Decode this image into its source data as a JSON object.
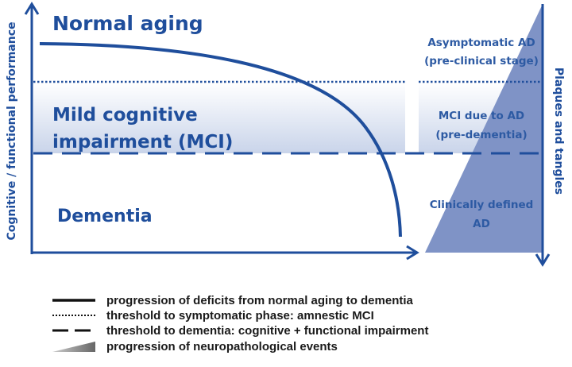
{
  "diagram": {
    "stages": {
      "normal": "Normal aging",
      "mci_line1": "Mild cognitive",
      "mci_line2": "impairment (MCI)",
      "dementia": "Dementia"
    },
    "ad_stages": {
      "asymptomatic_line1": "Asymptomatic AD",
      "asymptomatic_line2": "(pre-clinical stage)",
      "mci_line1": "MCI due to AD",
      "mci_line2": "(pre-dementia)",
      "clinical_line1": "Clinically defined",
      "clinical_line2": "AD"
    },
    "axes": {
      "left": "Cognitive / functional performance",
      "right": "Plaques and tangles"
    },
    "legend": [
      {
        "style": "solid",
        "label": "progression of deficits from normal aging to dementia"
      },
      {
        "style": "dotted",
        "label": "threshold to symptomatic phase: amnestic MCI"
      },
      {
        "style": "dashed",
        "label": "threshold to dementia: cognitive + functional impairment"
      },
      {
        "style": "wedge",
        "label": "progression of neuropathological events"
      }
    ],
    "colors": {
      "primary": "#1f4e9c",
      "wedge": "#7f93c6",
      "band": "#d5deef"
    }
  }
}
